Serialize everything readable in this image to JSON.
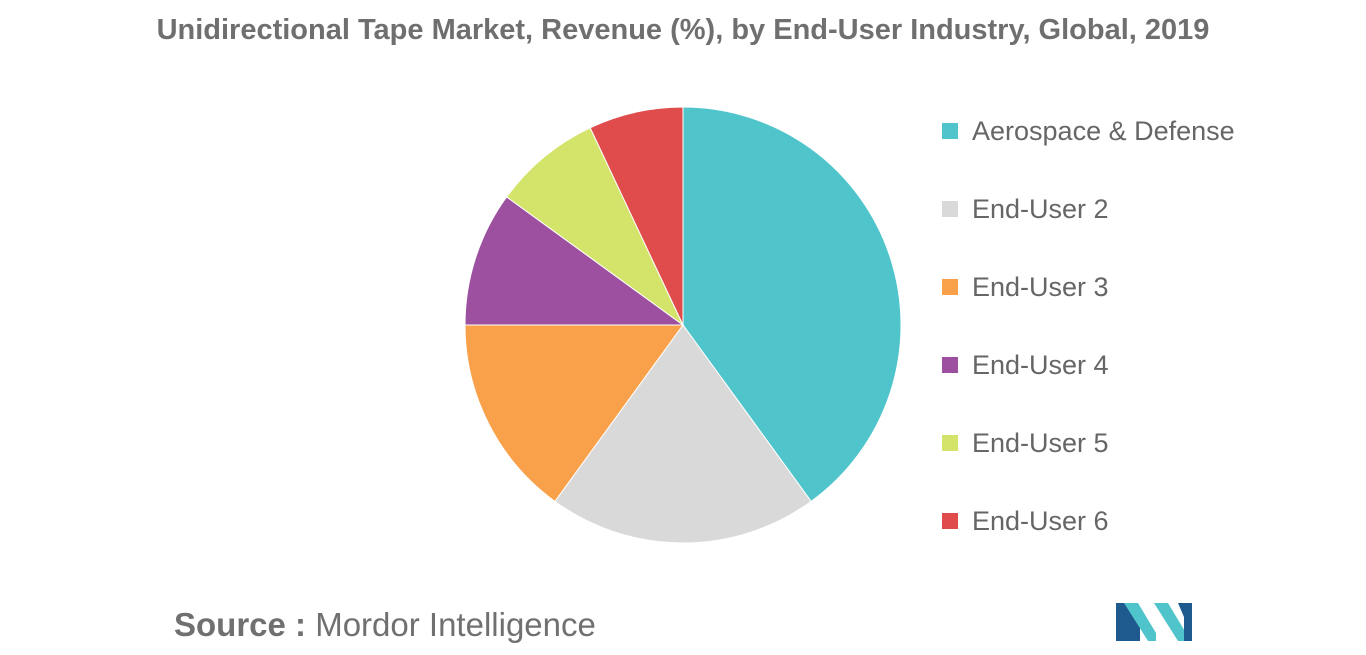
{
  "title": "Unidirectional Tape Market, Revenue (%), by End-User Industry, Global, 2019",
  "chart_data": {
    "type": "pie",
    "title": "Unidirectional Tape Market, Revenue (%), by End-User Industry, Global, 2019",
    "start": "12 o'clock, clockwise",
    "slices": [
      {
        "label": "Aerospace & Defense",
        "value": 40,
        "color": "#4fc4cb"
      },
      {
        "label": "End-User 2",
        "value": 20,
        "color": "#d9d9d9"
      },
      {
        "label": "End-User 3",
        "value": 15,
        "color": "#f9a04a"
      },
      {
        "label": "End-User 4",
        "value": 10,
        "color": "#9c509f"
      },
      {
        "label": "End-User 5",
        "value": 8,
        "color": "#d4e36a"
      },
      {
        "label": "End-User 6",
        "value": 7,
        "color": "#e04b4b"
      }
    ],
    "legend": "right"
  },
  "source": {
    "prefix": "Source :",
    "text": "Mordor Intelligence"
  },
  "logo": {
    "icon": "mordor-intelligence-logo",
    "colors": [
      "#1f5a8e",
      "#4fc4cb"
    ]
  }
}
